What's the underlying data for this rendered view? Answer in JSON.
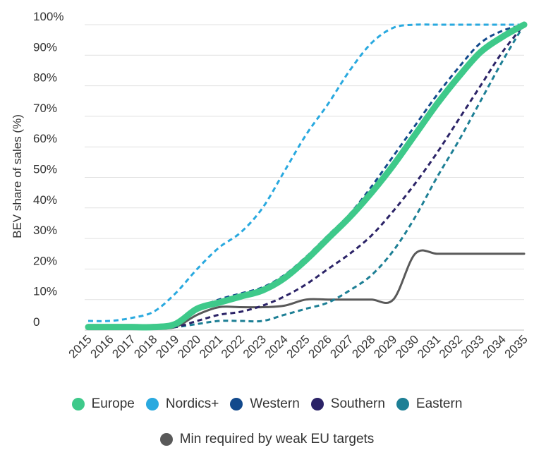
{
  "chart_data": {
    "type": "line",
    "title": "",
    "ylabel": "BEV share of sales (%)",
    "xlabel": "",
    "ylim": [
      0,
      100
    ],
    "yticks": [
      "0",
      "10%",
      "20%",
      "30%",
      "40%",
      "50%",
      "60%",
      "70%",
      "80%",
      "90%",
      "100%"
    ],
    "x": [
      "2015",
      "2016",
      "2017",
      "2018",
      "2019",
      "2020",
      "2021",
      "2022",
      "2023",
      "2024",
      "2025",
      "2026",
      "2027",
      "2028",
      "2029",
      "2030",
      "2031",
      "2032",
      "2033",
      "2034",
      "2035"
    ],
    "grid": true,
    "legend_position": "bottom",
    "series": [
      {
        "name": "Europe",
        "color": "#3ec98a",
        "style": "solid-thick",
        "values": [
          1,
          1,
          1,
          1,
          2,
          7,
          9,
          11,
          13,
          17,
          23,
          30,
          37,
          45,
          54,
          64,
          74,
          83,
          91,
          96,
          100
        ]
      },
      {
        "name": "Nordics+",
        "color": "#29a9df",
        "style": "dashed",
        "values": [
          3,
          3,
          4,
          6,
          12,
          20,
          27,
          32,
          40,
          52,
          64,
          74,
          85,
          94,
          99,
          100,
          100,
          100,
          100,
          100,
          100
        ]
      },
      {
        "name": "Western",
        "color": "#12498c",
        "style": "dashed",
        "values": [
          1,
          1,
          1,
          1,
          2,
          7,
          10,
          12,
          14,
          18,
          24,
          31,
          38,
          47,
          57,
          67,
          77,
          86,
          94,
          98,
          100
        ]
      },
      {
        "name": "Southern",
        "color": "#2b2367",
        "style": "dashed",
        "values": [
          1,
          1,
          1,
          1,
          1,
          3,
          5,
          6,
          8,
          11,
          15,
          20,
          25,
          31,
          39,
          48,
          58,
          69,
          80,
          91,
          100
        ]
      },
      {
        "name": "Eastern",
        "color": "#1d7f95",
        "style": "dashed",
        "values": [
          1,
          1,
          1,
          1,
          1,
          2,
          3,
          3,
          3,
          5,
          7,
          9,
          13,
          18,
          26,
          37,
          50,
          62,
          75,
          88,
          100
        ]
      },
      {
        "name": "Min required by weak EU targets",
        "color": "#595959",
        "style": "solid",
        "values": [
          0.5,
          0.5,
          0.5,
          0.5,
          1,
          5,
          7.5,
          7.5,
          7.5,
          8,
          10,
          10,
          10,
          10,
          10,
          25,
          25,
          25,
          25,
          25,
          25
        ]
      }
    ]
  }
}
